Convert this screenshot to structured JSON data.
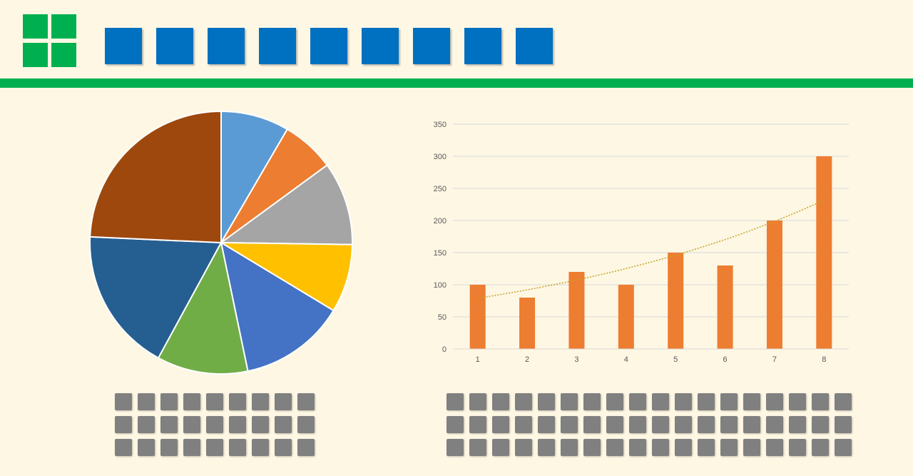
{
  "colors": {
    "background": "#fdf7e4",
    "brand_green": "#00b050",
    "title_blue": "#0070c0",
    "bar_orange": "#ed7d31",
    "trend_line": "#c9a227",
    "gridline": "#d9d9d9",
    "axis_label": "#595959",
    "placeholder_gray": "#808080"
  },
  "header": {
    "logo_icon": "four-squares-logo-icon",
    "title_blocks": 9
  },
  "placeholders": {
    "left_rows": 3,
    "left_cols": 9,
    "right_rows": 3,
    "right_cols": 18
  },
  "chart_data": [
    {
      "type": "pie",
      "title": "",
      "legend": "none",
      "slices": [
        {
          "value": 9,
          "color": "#5b9bd5"
        },
        {
          "value": 7,
          "color": "#ed7d31"
        },
        {
          "value": 11,
          "color": "#a5a5a5"
        },
        {
          "value": 9,
          "color": "#ffc000"
        },
        {
          "value": 14,
          "color": "#4472c4"
        },
        {
          "value": 12,
          "color": "#70ad47"
        },
        {
          "value": 19,
          "color": "#255e91"
        },
        {
          "value": 26,
          "color": "#9e480e"
        }
      ]
    },
    {
      "type": "bar",
      "title": "",
      "xlabel": "",
      "ylabel": "",
      "categories": [
        "1",
        "2",
        "3",
        "4",
        "5",
        "6",
        "7",
        "8"
      ],
      "values": [
        100,
        80,
        120,
        100,
        150,
        130,
        200,
        300
      ],
      "ylim": [
        0,
        350
      ],
      "yticks": [
        "0",
        "50",
        "100",
        "150",
        "200",
        "250",
        "300",
        "350"
      ],
      "grid": true,
      "legend": "none",
      "trendline": {
        "type": "exponential",
        "style": "dotted"
      }
    }
  ]
}
